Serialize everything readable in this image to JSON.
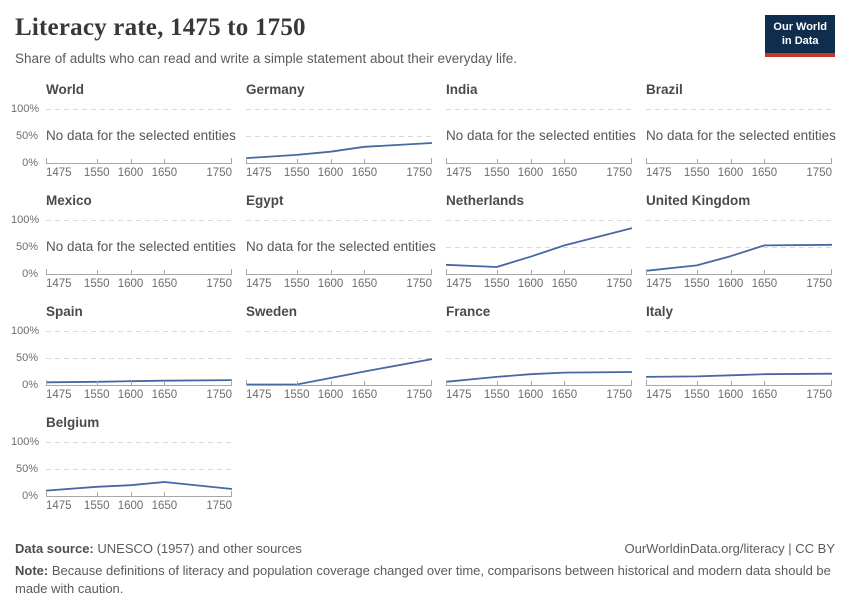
{
  "header": {
    "title": "Literacy rate, 1475 to 1750",
    "subtitle": "Share of adults who can read and write a simple statement about their everyday life.",
    "logo": {
      "line1": "Our World",
      "line2": "in Data"
    }
  },
  "no_data_message": "No data for the selected entities",
  "axis": {
    "x_range": [
      1475,
      1750
    ],
    "x_ticks": [
      "1475",
      "1550",
      "1600",
      "1650",
      "1750"
    ],
    "y_range": [
      0,
      100
    ],
    "y_tick_labels": [
      "100%",
      "50%",
      "0%"
    ],
    "gridline_style": "dashed"
  },
  "colors": {
    "line": "#4669a5",
    "gridline": "#d9d9d9",
    "axis_line": "#a8a8a8",
    "logo_bg": "#0f2e4e",
    "logo_bar": "#c0392b"
  },
  "chart_data": [
    {
      "type": "line",
      "title": "World",
      "no_data": true
    },
    {
      "type": "line",
      "title": "Germany",
      "x": [
        1475,
        1550,
        1600,
        1650,
        1750
      ],
      "values": [
        9,
        15,
        21,
        30,
        37
      ]
    },
    {
      "type": "line",
      "title": "India",
      "no_data": true
    },
    {
      "type": "line",
      "title": "Brazil",
      "no_data": true
    },
    {
      "type": "line",
      "title": "Mexico",
      "no_data": true
    },
    {
      "type": "line",
      "title": "Egypt",
      "no_data": true
    },
    {
      "type": "line",
      "title": "Netherlands",
      "x": [
        1475,
        1550,
        1600,
        1650,
        1750
      ],
      "values": [
        17,
        13,
        32,
        53,
        85
      ]
    },
    {
      "type": "line",
      "title": "United Kingdom",
      "x": [
        1475,
        1550,
        1600,
        1650,
        1750
      ],
      "values": [
        6,
        16,
        33,
        53,
        54
      ]
    },
    {
      "type": "line",
      "title": "Spain",
      "x": [
        1475,
        1550,
        1600,
        1650,
        1750
      ],
      "values": [
        5,
        6,
        7,
        8,
        9
      ]
    },
    {
      "type": "line",
      "title": "Sweden",
      "x": [
        1475,
        1550,
        1600,
        1650,
        1750
      ],
      "values": [
        1,
        1,
        13,
        25,
        48
      ]
    },
    {
      "type": "line",
      "title": "France",
      "x": [
        1475,
        1550,
        1600,
        1650,
        1750
      ],
      "values": [
        6,
        15,
        20,
        23,
        24
      ]
    },
    {
      "type": "line",
      "title": "Italy",
      "x": [
        1475,
        1550,
        1600,
        1650,
        1750
      ],
      "values": [
        15,
        16,
        18,
        20,
        21
      ]
    },
    {
      "type": "line",
      "title": "Belgium",
      "x": [
        1475,
        1550,
        1600,
        1650,
        1750
      ],
      "values": [
        10,
        17,
        20,
        26,
        13
      ]
    }
  ],
  "footer": {
    "source_label": "Data source:",
    "source_text": "UNESCO (1957) and other sources",
    "attribution": "OurWorldinData.org/literacy | CC BY",
    "note_label": "Note:",
    "note_text": "Because definitions of literacy and population coverage changed over time, comparisons between historical and modern data should be made with caution."
  }
}
